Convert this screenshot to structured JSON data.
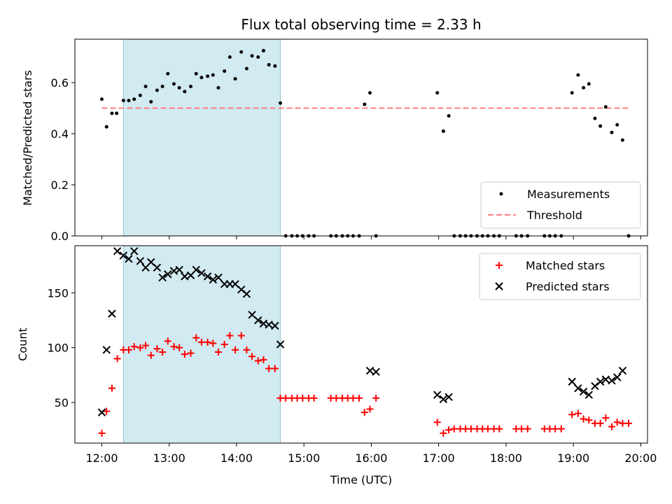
{
  "chart_data": [
    {
      "type": "scatter",
      "title": "Flux total observing time = 2.33 h",
      "ylabel": "Matched/Predicted stars",
      "ylim": [
        0,
        0.77
      ],
      "xlim_hours": [
        11.6,
        20.1
      ],
      "yticks": [
        0.0,
        0.2,
        0.4,
        0.6
      ],
      "ytick_labels": [
        "0.0",
        "0.2",
        "0.4",
        "0.6"
      ],
      "shaded_span_hours": [
        12.32,
        14.65
      ],
      "shaded_color": "#add8e6",
      "threshold": {
        "name": "Threshold",
        "value": 0.5,
        "x_range_hours": [
          12.0,
          19.83
        ],
        "color": "#ff7f7f"
      },
      "legend": {
        "placement": "lower-right",
        "entries": [
          "Measurements",
          "Threshold"
        ]
      },
      "series": [
        {
          "name": "Measurements",
          "marker": "dot",
          "color": "#000000",
          "x": [
            12.0,
            12.07,
            12.15,
            12.22,
            12.32,
            12.4,
            12.48,
            12.57,
            12.65,
            12.73,
            12.82,
            12.9,
            12.98,
            13.07,
            13.15,
            13.23,
            13.32,
            13.4,
            13.48,
            13.57,
            13.65,
            13.73,
            13.82,
            13.9,
            13.98,
            14.07,
            14.15,
            14.23,
            14.32,
            14.4,
            14.48,
            14.57,
            14.65,
            14.73,
            14.82,
            14.9,
            14.98,
            15.07,
            15.15,
            15.4,
            15.48,
            15.57,
            15.65,
            15.73,
            15.82,
            15.9,
            15.98,
            16.07,
            16.98,
            17.07,
            17.15,
            17.23,
            17.32,
            17.4,
            17.48,
            17.57,
            17.65,
            17.73,
            17.82,
            17.9,
            18.15,
            18.23,
            18.32,
            18.57,
            18.65,
            18.73,
            18.82,
            18.98,
            19.07,
            19.15,
            19.23,
            19.32,
            19.4,
            19.48,
            19.57,
            19.65,
            19.73,
            19.82
          ],
          "y": [
            0.535,
            0.427,
            0.48,
            0.48,
            0.53,
            0.53,
            0.535,
            0.55,
            0.585,
            0.525,
            0.57,
            0.585,
            0.635,
            0.595,
            0.58,
            0.565,
            0.585,
            0.635,
            0.62,
            0.625,
            0.63,
            0.58,
            0.645,
            0.7,
            0.615,
            0.72,
            0.655,
            0.705,
            0.7,
            0.725,
            0.67,
            0.665,
            0.52,
            0.0,
            0.0,
            0.0,
            0.0,
            0.0,
            0.0,
            0.0,
            0.0,
            0.0,
            0.0,
            0.0,
            0.0,
            0.515,
            0.56,
            0.0,
            0.56,
            0.41,
            0.47,
            0.0,
            0.0,
            0.0,
            0.0,
            0.0,
            0.0,
            0.0,
            0.0,
            0.0,
            0.0,
            0.0,
            0.0,
            0.0,
            0.0,
            0.0,
            0.0,
            0.56,
            0.63,
            0.58,
            0.595,
            0.46,
            0.43,
            0.505,
            0.405,
            0.435,
            0.375,
            0.0
          ]
        }
      ]
    },
    {
      "type": "scatter",
      "ylabel": "Count",
      "xlabel": "Time (UTC)",
      "ylim": [
        13,
        193
      ],
      "xlim_hours": [
        11.6,
        20.1
      ],
      "yticks": [
        50,
        100,
        150
      ],
      "ytick_labels": [
        "50",
        "100",
        "150"
      ],
      "xticks_hours": [
        12,
        13,
        14,
        15,
        16,
        17,
        18,
        19,
        20
      ],
      "xtick_labels": [
        "12:00",
        "13:00",
        "14:00",
        "15:00",
        "16:00",
        "17:00",
        "18:00",
        "19:00",
        "20:00"
      ],
      "shaded_span_hours": [
        12.32,
        14.65
      ],
      "shaded_color": "#add8e6",
      "legend": {
        "placement": "upper-right",
        "entries": [
          "Matched stars",
          "Predicted stars"
        ]
      },
      "series": [
        {
          "name": "Matched stars",
          "marker": "plus",
          "color": "#ff0000",
          "x": [
            12.0,
            12.07,
            12.15,
            12.23,
            12.32,
            12.4,
            12.48,
            12.57,
            12.65,
            12.73,
            12.82,
            12.9,
            12.98,
            13.07,
            13.15,
            13.23,
            13.32,
            13.4,
            13.48,
            13.57,
            13.65,
            13.73,
            13.82,
            13.9,
            13.98,
            14.07,
            14.15,
            14.23,
            14.32,
            14.4,
            14.48,
            14.57,
            14.65,
            14.73,
            14.82,
            14.9,
            14.98,
            15.07,
            15.15,
            15.4,
            15.48,
            15.57,
            15.65,
            15.73,
            15.82,
            15.9,
            15.98,
            16.07,
            16.98,
            17.07,
            17.15,
            17.23,
            17.32,
            17.4,
            17.48,
            17.57,
            17.65,
            17.73,
            17.82,
            17.9,
            18.15,
            18.23,
            18.32,
            18.57,
            18.65,
            18.73,
            18.82,
            18.98,
            19.07,
            19.15,
            19.23,
            19.32,
            19.4,
            19.48,
            19.57,
            19.65,
            19.73,
            19.82
          ],
          "y": [
            22,
            42,
            63,
            90,
            98,
            98,
            101,
            100,
            102,
            93,
            99,
            96,
            106,
            101,
            100,
            94,
            95,
            109,
            105,
            105,
            104,
            96,
            103,
            111,
            98,
            111,
            98,
            92,
            88,
            89,
            81,
            81,
            54,
            54,
            54,
            54,
            54,
            54,
            54,
            54,
            54,
            54,
            54,
            54,
            54,
            41,
            44,
            54,
            32,
            22,
            25,
            26,
            26,
            26,
            26,
            26,
            26,
            26,
            26,
            26,
            26,
            26,
            26,
            26,
            26,
            26,
            26,
            39,
            40,
            35,
            34,
            31,
            31,
            36,
            28,
            32,
            31,
            31
          ]
        },
        {
          "name": "Predicted stars",
          "marker": "x",
          "color": "#000000",
          "x": [
            12.0,
            12.07,
            12.15,
            12.23,
            12.32,
            12.4,
            12.48,
            12.57,
            12.65,
            12.73,
            12.82,
            12.9,
            12.98,
            13.07,
            13.15,
            13.23,
            13.32,
            13.4,
            13.48,
            13.57,
            13.65,
            13.73,
            13.82,
            13.9,
            13.98,
            14.07,
            14.15,
            14.23,
            14.32,
            14.4,
            14.48,
            14.57,
            14.65,
            15.98,
            16.07,
            16.98,
            17.07,
            17.15,
            18.98,
            19.07,
            19.15,
            19.23,
            19.32,
            19.4,
            19.48,
            19.57,
            19.65,
            19.73
          ],
          "y": [
            41,
            98,
            131,
            188,
            184,
            181,
            188,
            179,
            173,
            178,
            173,
            164,
            167,
            170,
            171,
            165,
            166,
            171,
            168,
            165,
            162,
            164,
            158,
            158,
            158,
            153,
            149,
            130,
            125,
            122,
            121,
            120,
            103,
            79,
            78,
            57,
            53,
            55,
            69,
            63,
            60,
            57,
            65,
            69,
            71,
            70,
            73,
            79
          ]
        }
      ]
    }
  ]
}
